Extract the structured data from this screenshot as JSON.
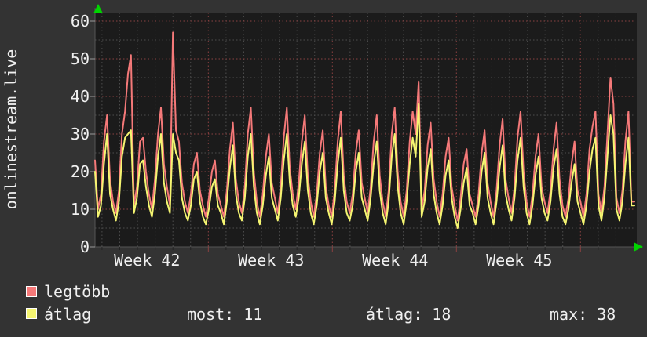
{
  "app": {
    "background_color": "#333333",
    "plot_background_color": "#1b1b1b",
    "text_color": "#f0f0f0",
    "axis_arrow_color": "#00d400",
    "major_grid_color": "#8a4040",
    "minor_grid_color": "#4d4d4d"
  },
  "chart_data": {
    "type": "line",
    "title": "",
    "ylabel_vertical": "onlinestream.live",
    "x_tick_labels": [
      "Week 42",
      "Week 43",
      "Week 44",
      "Week 45"
    ],
    "y_ticks": [
      0,
      10,
      20,
      30,
      40,
      50,
      60
    ],
    "ylim": [
      0,
      62
    ],
    "grid": {
      "h_minor_step": 5,
      "h_major_step": 10,
      "v_minor": "daily",
      "v_major": "weekly"
    },
    "legend_position": "bottom-left",
    "samples_per_day": 6,
    "days": 30,
    "series": [
      {
        "name": "legtöbb",
        "color": "#f57979",
        "values": [
          23,
          10,
          14,
          28,
          35,
          18,
          12,
          9,
          15,
          30,
          36,
          46,
          51,
          11,
          16,
          28,
          29,
          20,
          14,
          10,
          18,
          30,
          37,
          22,
          16,
          11,
          57,
          31,
          28,
          17,
          12,
          9,
          14,
          22,
          25,
          15,
          11,
          8,
          13,
          20,
          23,
          14,
          11,
          8,
          15,
          26,
          33,
          18,
          12,
          9,
          16,
          30,
          37,
          20,
          12,
          8,
          14,
          24,
          30,
          17,
          13,
          9,
          16,
          29,
          37,
          21,
          14,
          10,
          17,
          28,
          35,
          19,
          12,
          8,
          14,
          25,
          31,
          16,
          11,
          8,
          15,
          28,
          36,
          19,
          12,
          9,
          14,
          25,
          31,
          17,
          13,
          9,
          16,
          28,
          35,
          19,
          12,
          8,
          15,
          30,
          37,
          20,
          12,
          8,
          15,
          28,
          36,
          30,
          44,
          10,
          15,
          27,
          33,
          18,
          12,
          8,
          14,
          24,
          29,
          16,
          11,
          7,
          13,
          22,
          26,
          14,
          11,
          8,
          14,
          25,
          31,
          17,
          12,
          8,
          15,
          27,
          34,
          18,
          13,
          9,
          16,
          29,
          36,
          20,
          12,
          8,
          14,
          24,
          30,
          16,
          12,
          9,
          15,
          26,
          33,
          18,
          11,
          8,
          13,
          22,
          28,
          15,
          12,
          8,
          14,
          26,
          32,
          36,
          14,
          9,
          16,
          30,
          45,
          38,
          13,
          9,
          15,
          28,
          36,
          12,
          12
        ]
      },
      {
        "name": "átlag",
        "color": "#f5f571",
        "values": [
          20,
          8,
          11,
          22,
          30,
          14,
          10,
          7,
          12,
          24,
          29,
          30,
          31,
          9,
          13,
          22,
          23,
          16,
          11,
          8,
          14,
          24,
          30,
          17,
          12,
          9,
          30,
          25,
          23,
          13,
          9,
          7,
          11,
          18,
          20,
          12,
          8,
          6,
          10,
          16,
          18,
          11,
          9,
          6,
          12,
          21,
          27,
          14,
          9,
          7,
          13,
          24,
          30,
          16,
          9,
          6,
          11,
          19,
          24,
          13,
          10,
          7,
          13,
          23,
          30,
          17,
          11,
          8,
          13,
          22,
          28,
          15,
          9,
          6,
          11,
          20,
          25,
          13,
          9,
          6,
          12,
          22,
          29,
          15,
          9,
          7,
          11,
          20,
          25,
          13,
          10,
          7,
          13,
          22,
          28,
          15,
          9,
          6,
          12,
          24,
          30,
          16,
          9,
          6,
          12,
          22,
          29,
          24,
          38,
          8,
          12,
          21,
          26,
          14,
          9,
          6,
          11,
          19,
          23,
          13,
          8,
          5,
          10,
          17,
          21,
          11,
          9,
          6,
          11,
          20,
          25,
          13,
          9,
          6,
          12,
          21,
          27,
          14,
          10,
          7,
          13,
          23,
          29,
          16,
          9,
          6,
          11,
          19,
          24,
          13,
          9,
          7,
          12,
          21,
          26,
          14,
          8,
          6,
          10,
          17,
          22,
          12,
          9,
          6,
          11,
          20,
          26,
          29,
          11,
          7,
          13,
          24,
          35,
          30,
          10,
          7,
          12,
          22,
          29,
          11,
          11
        ]
      }
    ],
    "stats": {
      "most_text": "most: 11",
      "atlag_text": "átlag: 18",
      "max_text": "max: 38",
      "most": 11,
      "atlag": 18,
      "max": 38
    }
  },
  "legend": {
    "items": [
      {
        "label": "legtöbb",
        "color": "#f57979"
      },
      {
        "label": "átlag",
        "color": "#f5f571"
      }
    ]
  }
}
